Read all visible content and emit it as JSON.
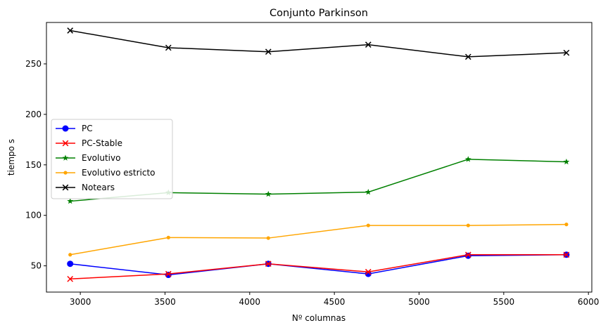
{
  "chart_data": {
    "type": "line",
    "title": "Conjunto Parkinson",
    "xlabel": "Nº columnas",
    "ylabel": "tiempo s",
    "xlim": [
      2800,
      6020
    ],
    "ylim": [
      24,
      291
    ],
    "xticks": [
      3000,
      3500,
      4000,
      4500,
      5000,
      5500,
      6000
    ],
    "yticks": [
      50,
      100,
      150,
      200,
      250
    ],
    "grid": false,
    "legend_position": "center-left",
    "x": [
      2940,
      3520,
      4110,
      4700,
      5290,
      5870
    ],
    "series": [
      {
        "name": "PC",
        "color": "#0000ff",
        "marker": "circle",
        "values": [
          52,
          41,
          52,
          42,
          60,
          61
        ]
      },
      {
        "name": "PC-Stable",
        "color": "#ff0000",
        "marker": "x",
        "values": [
          37,
          42,
          52,
          44,
          61,
          61
        ]
      },
      {
        "name": "Evolutivo",
        "color": "#008000",
        "marker": "star",
        "values": [
          114,
          122.5,
          121,
          123,
          155.5,
          153
        ]
      },
      {
        "name": "Evolutivo estricto",
        "color": "#ffa500",
        "marker": "dot",
        "values": [
          61,
          78,
          77.5,
          90,
          90,
          91
        ]
      },
      {
        "name": "Notears",
        "color": "#000000",
        "marker": "x",
        "values": [
          283,
          266,
          262,
          269,
          257,
          261
        ]
      }
    ]
  }
}
